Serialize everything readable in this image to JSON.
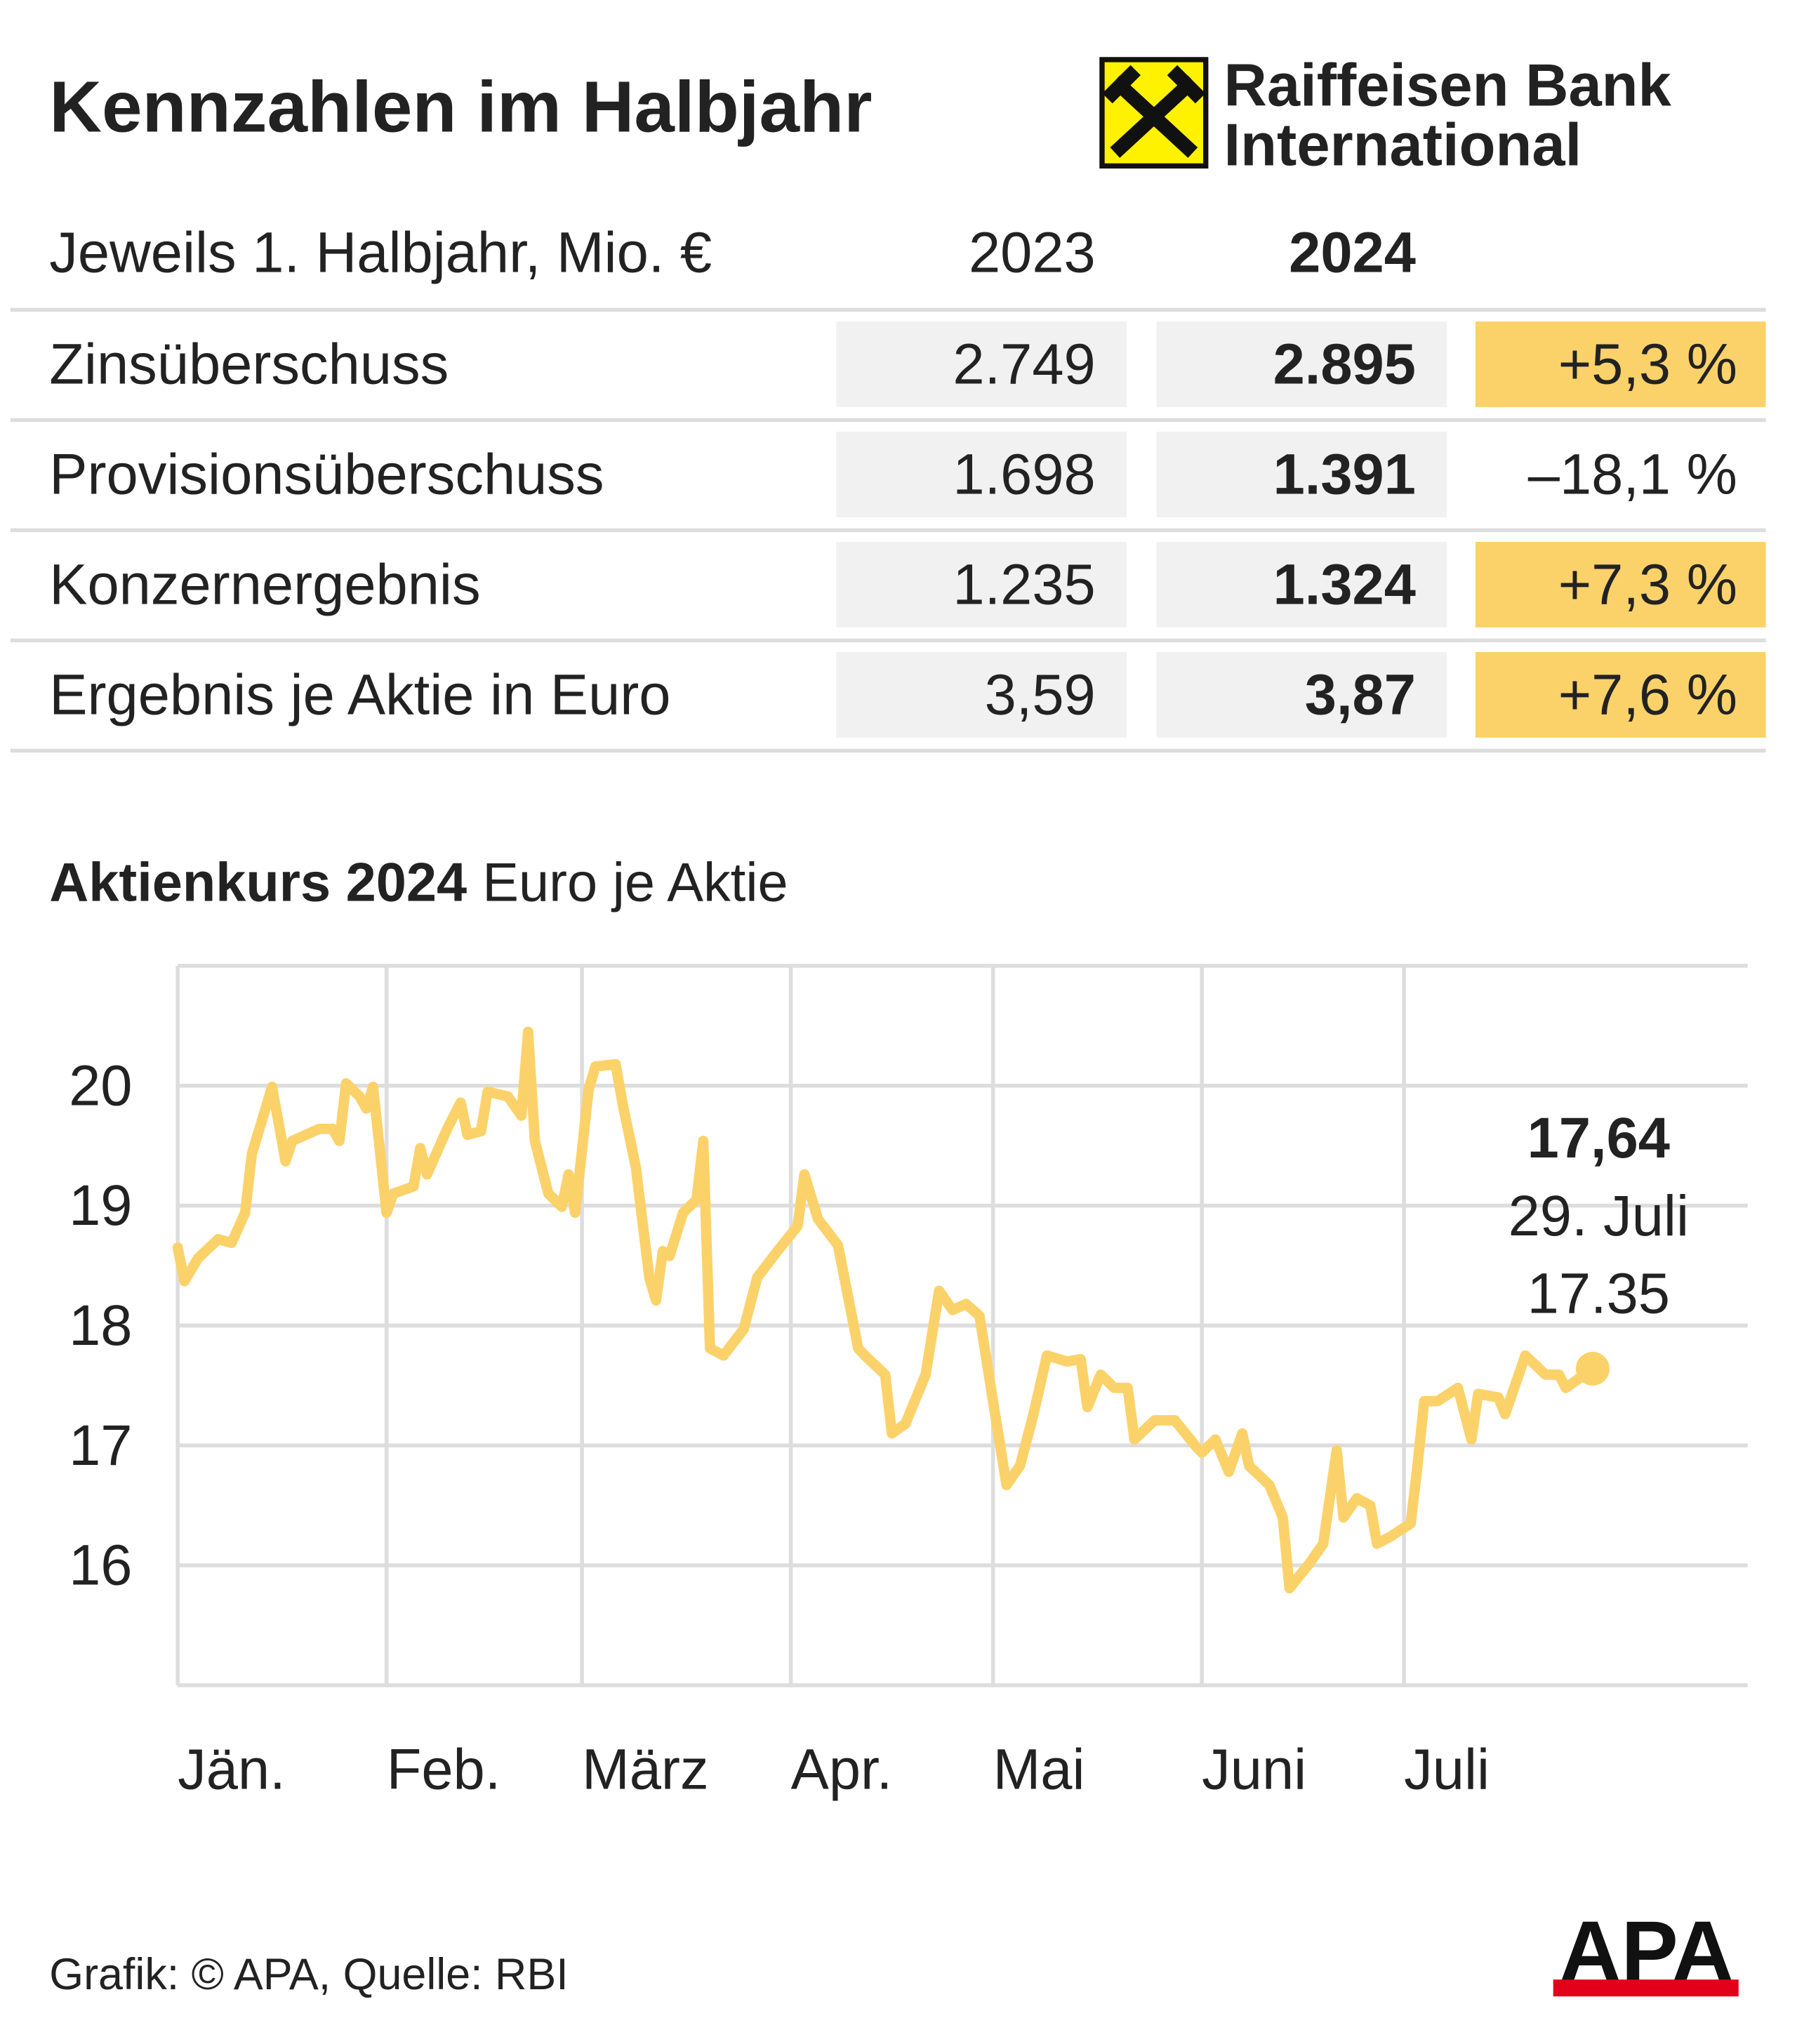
{
  "header": {
    "title": "Kennzahlen im Halbjahr",
    "logo_line1": "Raiffeisen Bank",
    "logo_line2": "International"
  },
  "table": {
    "columns": [
      "Jeweils 1. Halbjahr, Mio. €",
      "2023",
      "2024"
    ],
    "rows": [
      [
        "Zinsüberschuss",
        "2.749",
        "2.895",
        "+5,3 %"
      ],
      [
        "Provisionsüberschuss",
        "1.698",
        "1.391",
        "–18,1 %"
      ],
      [
        "Konzernergebnis",
        "1.235",
        "1.324",
        "+7,3 %"
      ],
      [
        "Ergebnis je Aktie in Euro",
        "3,59",
        "3,87",
        "+7,6 %"
      ]
    ],
    "highlighted": [
      true,
      false,
      true,
      true
    ],
    "highlight_color": "#fbd26a"
  },
  "chart_data": {
    "type": "line",
    "title": "Aktienkurs 2024",
    "subtitle": "Euro je Aktie",
    "x": [
      0,
      1,
      3,
      6,
      8,
      10,
      11,
      14,
      16,
      17,
      21,
      23,
      24,
      25,
      27,
      28,
      29,
      31,
      32,
      35,
      36,
      37,
      40,
      42,
      43,
      45,
      46,
      49,
      51,
      52,
      53,
      55,
      57,
      58,
      59,
      61,
      62,
      65,
      66,
      68,
      70,
      71,
      72,
      73,
      75,
      77,
      78,
      79,
      81,
      84,
      86,
      89,
      92,
      93,
      95,
      98,
      101,
      102,
      105,
      106,
      108,
      111,
      113,
      115,
      117,
      119,
      121,
      123,
      125,
      127,
      129,
      132,
      134,
      135,
      137,
      139,
      141,
      142,
      145,
      148,
      151,
      152,
      154,
      156,
      158,
      159,
      162,
      164,
      165,
      168,
      170,
      172,
      173,
      175,
      177,
      178,
      180,
      183,
      184,
      185,
      187,
      190,
      192,
      193,
      196,
      197,
      200,
      203,
      205,
      206,
      210
    ],
    "series": [
      {
        "name": "Aktienkurs",
        "color": "#fbd26a",
        "values": [
          18.65,
          18.37,
          18.56,
          18.72,
          18.69,
          18.94,
          19.43,
          19.99,
          19.37,
          19.54,
          19.64,
          19.64,
          19.54,
          20.02,
          19.91,
          19.81,
          19.99,
          18.94,
          19.1,
          19.16,
          19.48,
          19.26,
          19.64,
          19.86,
          19.59,
          19.62,
          19.95,
          19.91,
          19.75,
          20.45,
          19.54,
          19.1,
          18.99,
          19.26,
          18.94,
          19.97,
          20.16,
          20.18,
          19.86,
          19.32,
          18.4,
          18.21,
          18.62,
          18.58,
          18.94,
          19.05,
          19.54,
          17.81,
          17.75,
          17.97,
          18.4,
          18.62,
          18.83,
          19.26,
          18.89,
          18.67,
          17.81,
          17.75,
          17.59,
          17.1,
          17.18,
          17.59,
          18.29,
          18.13,
          18.18,
          18.08,
          17.37,
          16.67,
          16.83,
          17.26,
          17.75,
          17.7,
          17.72,
          17.32,
          17.59,
          17.48,
          17.48,
          17.05,
          17.21,
          17.21,
          17.0,
          16.94,
          17.05,
          16.78,
          17.1,
          16.83,
          16.67,
          16.4,
          15.81,
          16.02,
          16.18,
          16.96,
          16.4,
          16.56,
          16.5,
          16.18,
          16.24,
          16.35,
          16.83,
          17.37,
          17.37,
          17.48,
          17.05,
          17.43,
          17.4,
          17.26,
          17.75,
          17.59,
          17.59,
          17.48,
          17.64
        ]
      }
    ],
    "xlim": [
      0,
      233
    ],
    "xticks": [
      {
        "value": 0,
        "label": "Jän."
      },
      {
        "value": 31,
        "label": "Feb."
      },
      {
        "value": 60,
        "label": "März"
      },
      {
        "value": 91,
        "label": "Apr."
      },
      {
        "value": 121,
        "label": "Mai"
      },
      {
        "value": 152,
        "label": "Juni"
      },
      {
        "value": 182,
        "label": "Juli"
      }
    ],
    "ylim": [
      15,
      21
    ],
    "yticks": [
      16,
      17,
      18,
      19,
      20
    ],
    "grid": true,
    "annotations": [
      "17,64",
      "29. Juli",
      "17.35"
    ]
  },
  "footer": {
    "source": "Grafik: © APA, Quelle: RBI",
    "logo": "APA"
  }
}
